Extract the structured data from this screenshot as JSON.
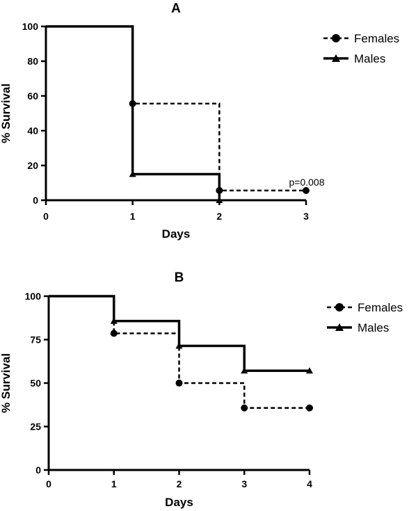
{
  "chart_data": [
    {
      "type": "line",
      "title": "A",
      "xlabel": "Days",
      "ylabel": "% Survival",
      "xlim": [
        0,
        3
      ],
      "ylim": [
        0,
        100
      ],
      "xticks": [
        0,
        1,
        2,
        3
      ],
      "yticks": [
        0,
        20,
        40,
        60,
        80,
        100
      ],
      "grid": false,
      "legend_position": "top-right",
      "annotation": "p=0.008",
      "series": [
        {
          "name": "Females",
          "line_style": "dashed",
          "marker": "circle",
          "x": [
            0,
            1,
            2,
            3
          ],
          "y": [
            100,
            55.6,
            5.6,
            5.6
          ]
        },
        {
          "name": "Males",
          "line_style": "solid",
          "marker": "triangle",
          "x": [
            0,
            1,
            2
          ],
          "y": [
            100,
            15,
            0
          ]
        }
      ]
    },
    {
      "type": "line",
      "title": "B",
      "xlabel": "Days",
      "ylabel": "% Survival",
      "xlim": [
        0,
        4
      ],
      "ylim": [
        0,
        100
      ],
      "xticks": [
        0,
        1,
        2,
        3,
        4
      ],
      "yticks": [
        0,
        25,
        50,
        75,
        100
      ],
      "grid": false,
      "legend_position": "top-right",
      "series": [
        {
          "name": "Females",
          "line_style": "dashed",
          "marker": "circle",
          "x": [
            0,
            1,
            2,
            3,
            4
          ],
          "y": [
            100,
            78.6,
            50,
            35.7,
            35.7
          ]
        },
        {
          "name": "Males",
          "line_style": "solid",
          "marker": "triangle",
          "x": [
            0,
            1,
            2,
            3,
            4
          ],
          "y": [
            100,
            85.7,
            71.4,
            57.1,
            57.1
          ]
        }
      ]
    }
  ]
}
